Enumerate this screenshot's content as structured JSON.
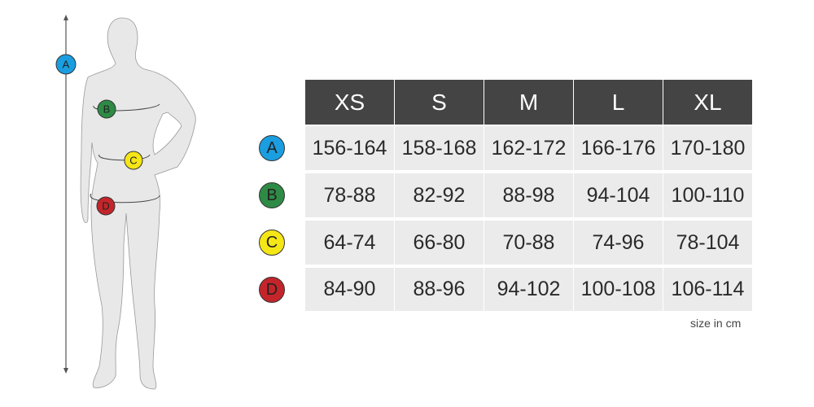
{
  "sizes": [
    "XS",
    "S",
    "M",
    "L",
    "XL"
  ],
  "rows": [
    {
      "label": "A",
      "color": "#1a9ee0",
      "values": [
        "156-164",
        "158-168",
        "162-172",
        "166-176",
        "170-180"
      ]
    },
    {
      "label": "B",
      "color": "#2e8b45",
      "values": [
        "78-88",
        "82-92",
        "88-98",
        "94-104",
        "100-110"
      ]
    },
    {
      "label": "C",
      "color": "#f5e616",
      "values": [
        "64-74",
        "66-80",
        "70-88",
        "74-96",
        "78-104"
      ]
    },
    {
      "label": "D",
      "color": "#c4252a",
      "values": [
        "84-90",
        "88-96",
        "94-102",
        "100-108",
        "106-114"
      ]
    }
  ],
  "note": "size in cm",
  "header_color": "#444444",
  "cell_color": "#ebebeb"
}
